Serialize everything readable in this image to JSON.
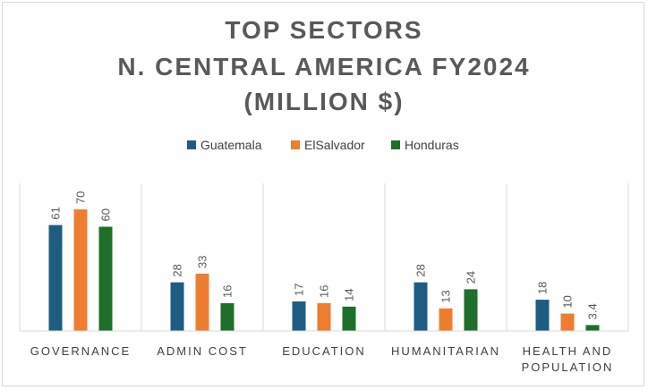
{
  "chart_data": {
    "type": "bar",
    "title_lines": [
      "TOP SECTORS",
      "N. CENTRAL AMERICA FY2024",
      "(MILLION $)"
    ],
    "categories": [
      [
        "GOVERNANCE"
      ],
      [
        "ADMIN COST"
      ],
      [
        "EDUCATION"
      ],
      [
        "HUMANITARIAN"
      ],
      [
        "HEALTH AND",
        "POPULATION"
      ]
    ],
    "series": [
      {
        "name": "Guatemala",
        "color": "#1f5c82",
        "values": [
          61,
          28,
          17,
          28,
          18
        ],
        "labels": [
          "61",
          "28",
          "17",
          "28",
          "18"
        ]
      },
      {
        "name": "ElSalvador",
        "color": "#ed7d31",
        "values": [
          70,
          33,
          16,
          13,
          10
        ],
        "labels": [
          "70",
          "33",
          "16",
          "13",
          "10"
        ]
      },
      {
        "name": "Honduras",
        "color": "#1e6f2a",
        "values": [
          60,
          16,
          14,
          24,
          3.4
        ],
        "labels": [
          "60",
          "16",
          "14",
          "24",
          "3.4"
        ]
      }
    ],
    "ylim": [
      0,
      85
    ],
    "grid": false,
    "legend_position": "top-center",
    "category_separators": true
  }
}
